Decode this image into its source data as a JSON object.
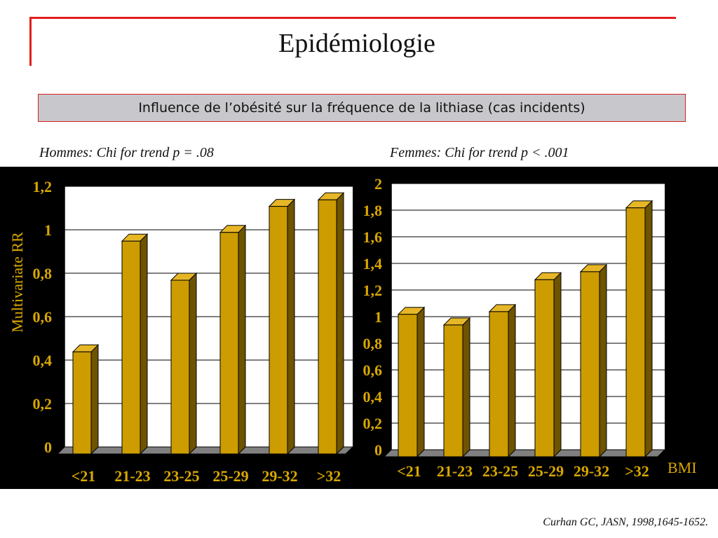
{
  "slide": {
    "title": "Epidémiologie",
    "banner": "Influence de l’obésité sur la fréquence de la lithiase  (cas incidents)",
    "subtitle_left": "Hommes: Chi for trend p = .08",
    "subtitle_right": "Femmes: Chi for trend p < .001",
    "ylabel": "Multivariate RR",
    "xlabel": "BMI",
    "source": "Curhan GC, JASN, 1998,1645-1652."
  },
  "colors": {
    "bar_front": "#cc9c00",
    "bar_side": "#6e5300",
    "bar_top": "#e6b626",
    "axis_text": "#d9a800",
    "plot_bg": "#ffffff",
    "floor": "#808080",
    "accent_red": "#e0201b"
  },
  "chart_data": [
    {
      "type": "bar",
      "categories": [
        "<21",
        "21-23",
        "23-25",
        "25-29",
        "29-32",
        ">32"
      ],
      "values": [
        0.47,
        0.98,
        0.8,
        1.02,
        1.14,
        1.17
      ],
      "ylim": [
        0,
        1.2
      ],
      "ticks": [
        "0",
        "0,2",
        "0,4",
        "0,6",
        "0,8",
        "1",
        "1,2"
      ],
      "grid": true
    },
    {
      "type": "bar",
      "categories": [
        "<21",
        "21-23",
        "23-25",
        "25-29",
        "29-32",
        ">32"
      ],
      "values": [
        1.07,
        0.99,
        1.09,
        1.33,
        1.39,
        1.87
      ],
      "ylim": [
        0,
        2
      ],
      "ticks": [
        "0",
        "0,2",
        "0,4",
        "0,6",
        "0,8",
        "1",
        "1,2",
        "1,4",
        "1,6",
        "1,8",
        "2"
      ],
      "grid": true
    }
  ]
}
